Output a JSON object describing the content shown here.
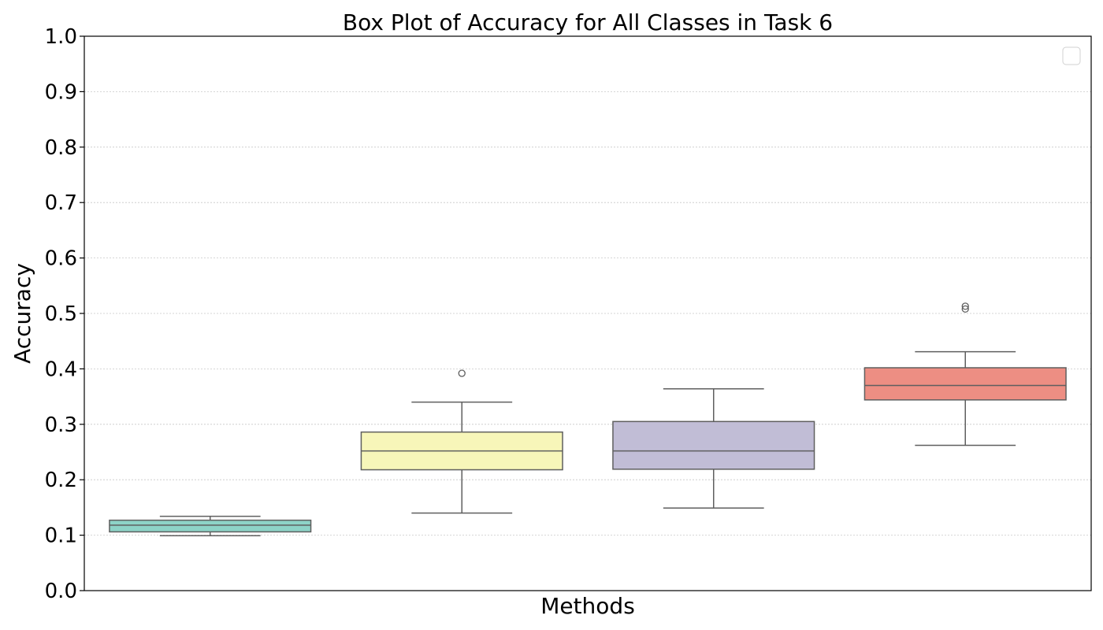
{
  "chart_data": {
    "type": "box",
    "title": "Box Plot of Accuracy for All Classes in Task 6",
    "xlabel": "Methods",
    "ylabel": "Accuracy",
    "ylim": [
      0.0,
      1.0
    ],
    "y_ticks": [
      "0.0",
      "0.1",
      "0.2",
      "0.3",
      "0.4",
      "0.5",
      "0.6",
      "0.7",
      "0.8",
      "0.9",
      "1.0"
    ],
    "grid": "horizontal dotted",
    "legend": {
      "placement": "top-right",
      "entries": []
    },
    "boxes": [
      {
        "color": "#8dd3c7",
        "whisker_low": 0.099,
        "q1": 0.106,
        "median": 0.118,
        "q3": 0.127,
        "whisker_high": 0.134,
        "outliers": []
      },
      {
        "color": "#f7f6b9",
        "whisker_low": 0.14,
        "q1": 0.218,
        "median": 0.252,
        "q3": 0.286,
        "whisker_high": 0.34,
        "outliers": [
          0.392
        ]
      },
      {
        "color": "#c1bdd6",
        "whisker_low": 0.149,
        "q1": 0.219,
        "median": 0.252,
        "q3": 0.305,
        "whisker_high": 0.364,
        "outliers": []
      },
      {
        "color": "#ed8e83",
        "whisker_low": 0.262,
        "q1": 0.344,
        "median": 0.37,
        "q3": 0.402,
        "whisker_high": 0.431,
        "outliers": [
          0.508,
          0.513
        ]
      }
    ]
  }
}
